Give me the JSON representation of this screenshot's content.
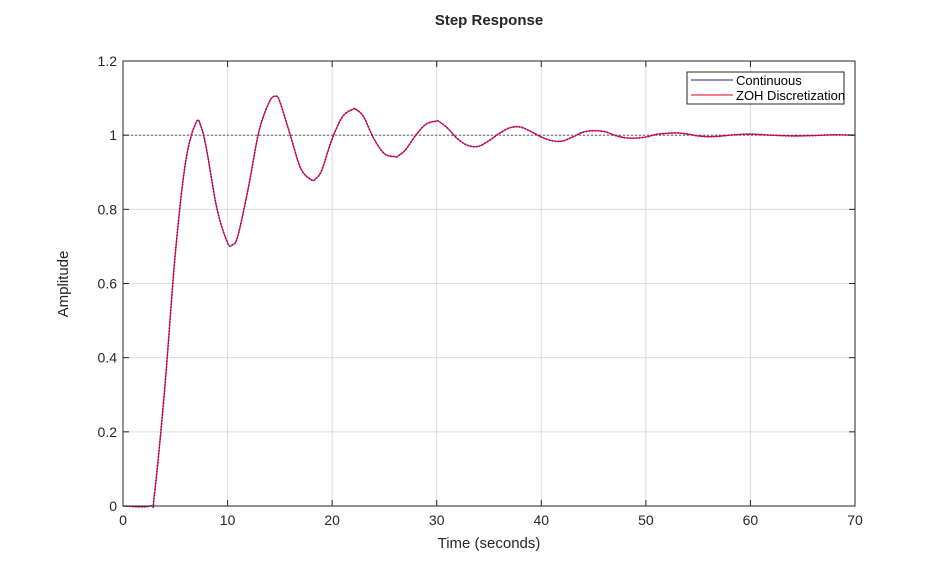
{
  "chart_data": {
    "type": "line",
    "title": "Step Response",
    "xlabel": "Time (seconds)",
    "ylabel": "Amplitude",
    "xlim": [
      0,
      70
    ],
    "ylim": [
      0,
      1.2
    ],
    "xticks": [
      "0",
      "10",
      "20",
      "30",
      "40",
      "50",
      "60",
      "70"
    ],
    "yticks": [
      "0",
      "0.2",
      "0.4",
      "0.6",
      "0.8",
      "1",
      "1.2"
    ],
    "grid": true,
    "reference_line": 1,
    "legend_position": "top-right",
    "colors": {
      "continuous": "#0000ff",
      "zoh": "#e3002a",
      "axis": "#262626",
      "grid": "#dcdcdc",
      "reference": "#444444"
    },
    "series": [
      {
        "name": "Continuous",
        "style": "dotted",
        "x": [
          0,
          2.6,
          3,
          4,
          5,
          6,
          7,
          7.5,
          8,
          9,
          10,
          10.5,
          11,
          12,
          13,
          14,
          14.6,
          15,
          16,
          17,
          18,
          18.4,
          19,
          20,
          21,
          22,
          22.3,
          23,
          24,
          25,
          26,
          26.2,
          27,
          28,
          29,
          30,
          30.2,
          31,
          32,
          33,
          34,
          35,
          36,
          37,
          38,
          39,
          40,
          41,
          42,
          43,
          44,
          45,
          46,
          47,
          48,
          49,
          50,
          51,
          52,
          53,
          54,
          55,
          56,
          57,
          58,
          59,
          60,
          62,
          64,
          66,
          68,
          70
        ],
        "y": [
          0,
          0,
          0.03,
          0.32,
          0.68,
          0.93,
          1.035,
          1.02,
          0.96,
          0.8,
          0.71,
          0.705,
          0.73,
          0.86,
          1.01,
          1.09,
          1.105,
          1.09,
          1.0,
          0.91,
          0.88,
          0.882,
          0.905,
          0.99,
          1.05,
          1.07,
          1.069,
          1.05,
          0.99,
          0.95,
          0.942,
          0.942,
          0.96,
          1.0,
          1.03,
          1.038,
          1.037,
          1.02,
          0.99,
          0.972,
          0.97,
          0.985,
          1.005,
          1.02,
          1.022,
          1.01,
          0.995,
          0.985,
          0.984,
          0.995,
          1.008,
          1.012,
          1.01,
          1.0,
          0.993,
          0.992,
          0.995,
          1.002,
          1.005,
          1.006,
          1.003,
          0.998,
          0.996,
          0.997,
          1.0,
          1.002,
          1.003,
          1.0,
          0.998,
          0.999,
          1.001,
          1.0
        ]
      },
      {
        "name": "ZOH Discretization",
        "style": "solid",
        "x": [
          0,
          2.6,
          3,
          4,
          5,
          6,
          7,
          7.5,
          8,
          9,
          10,
          10.5,
          11,
          12,
          13,
          14,
          14.6,
          15,
          16,
          17,
          18,
          18.4,
          19,
          20,
          21,
          22,
          22.3,
          23,
          24,
          25,
          26,
          26.2,
          27,
          28,
          29,
          30,
          30.2,
          31,
          32,
          33,
          34,
          35,
          36,
          37,
          38,
          39,
          40,
          41,
          42,
          43,
          44,
          45,
          46,
          47,
          48,
          49,
          50,
          51,
          52,
          53,
          54,
          55,
          56,
          57,
          58,
          59,
          60,
          62,
          64,
          66,
          68,
          70
        ],
        "y": [
          0,
          0,
          0.03,
          0.32,
          0.68,
          0.93,
          1.035,
          1.02,
          0.96,
          0.8,
          0.71,
          0.705,
          0.73,
          0.86,
          1.01,
          1.09,
          1.105,
          1.09,
          1.0,
          0.91,
          0.88,
          0.882,
          0.905,
          0.99,
          1.05,
          1.07,
          1.069,
          1.05,
          0.99,
          0.95,
          0.942,
          0.942,
          0.96,
          1.0,
          1.03,
          1.038,
          1.037,
          1.02,
          0.99,
          0.972,
          0.97,
          0.985,
          1.005,
          1.02,
          1.022,
          1.01,
          0.995,
          0.985,
          0.984,
          0.995,
          1.008,
          1.012,
          1.01,
          1.0,
          0.993,
          0.992,
          0.995,
          1.002,
          1.005,
          1.006,
          1.003,
          0.998,
          0.996,
          0.997,
          1.0,
          1.002,
          1.003,
          1.0,
          0.998,
          0.999,
          1.001,
          1.0
        ]
      }
    ]
  }
}
